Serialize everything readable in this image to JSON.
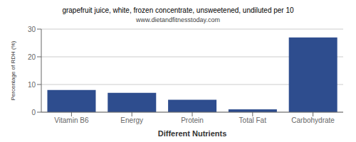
{
  "chart_data": {
    "type": "bar",
    "title": "grapefruit juice, white, frozen concentrate, unsweetened, undiluted per 10",
    "subtitle": "www.dietandfitnesstoday.com",
    "xlabel": "Different Nutrients",
    "ylabel": "Percentage of RDH (%)",
    "categories": [
      "Vitamin B6",
      "Energy",
      "Protein",
      "Total Fat",
      "Carbohydrate"
    ],
    "values": [
      8.0,
      7.0,
      4.5,
      1.0,
      27.0
    ],
    "color": "#2e4d8e",
    "ylim": [
      0,
      30
    ],
    "yticks": [
      0,
      10,
      20,
      30
    ],
    "grid": true
  }
}
